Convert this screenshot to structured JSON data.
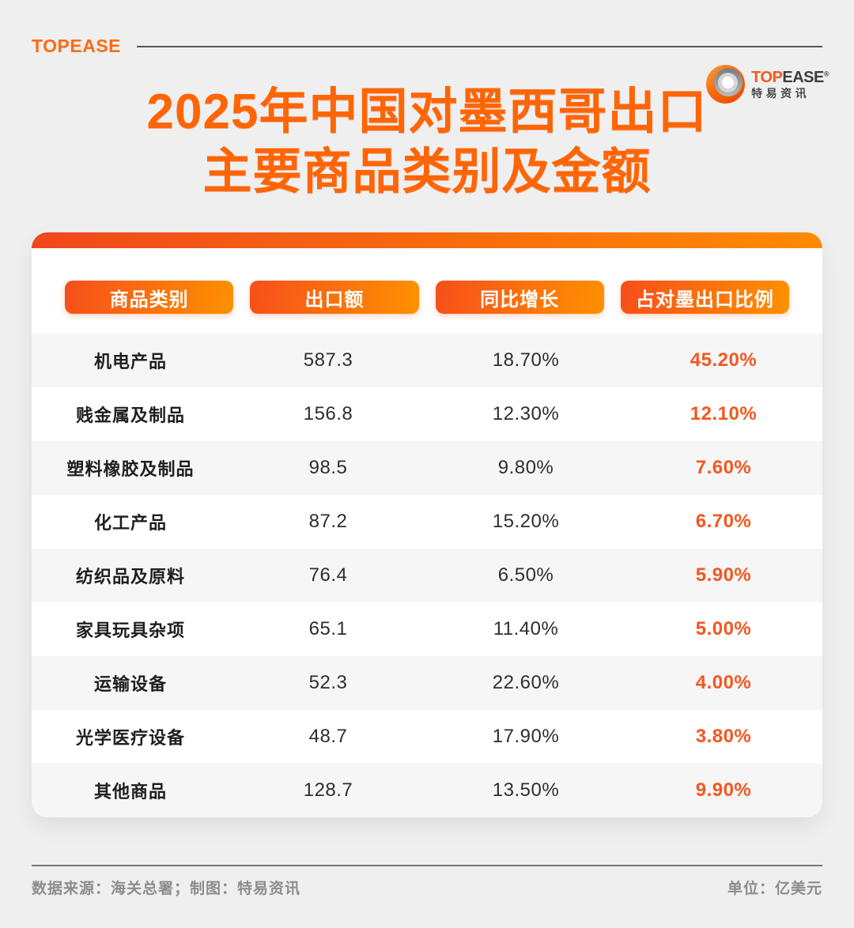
{
  "page": {
    "background": "#efeff0",
    "accent_orange": "#ff6505",
    "highlight_orange": "#f4571f"
  },
  "topbar": {
    "brand_text": "TOPEASE"
  },
  "corner_logo": {
    "wordmark_top": "TOP",
    "wordmark_ease": "EASE",
    "registered_mark": "®",
    "cn_name": "特易资讯"
  },
  "title": {
    "line1": "2025年中国对墨西哥出口",
    "line2": "主要商品类别及金额"
  },
  "chart_data": {
    "type": "table",
    "title": "2025年中国对墨西哥出口主要商品类别及金额",
    "unit": "亿美元",
    "columns": [
      "商品类别",
      "出口额",
      "同比增长",
      "占对墨出口比例"
    ],
    "rows": [
      [
        "机电产品",
        "587.3",
        "18.70%",
        "45.20%"
      ],
      [
        "贱金属及制品",
        "156.8",
        "12.30%",
        "12.10%"
      ],
      [
        "塑料橡胶及制品",
        "98.5",
        "9.80%",
        "7.60%"
      ],
      [
        "化工产品",
        "87.2",
        "15.20%",
        "6.70%"
      ],
      [
        "纺织品及原料",
        "76.4",
        "6.50%",
        "5.90%"
      ],
      [
        "家具玩具杂项",
        "65.1",
        "11.40%",
        "5.00%"
      ],
      [
        "运输设备",
        "52.3",
        "22.60%",
        "4.00%"
      ],
      [
        "光学医疗设备",
        "48.7",
        "17.90%",
        "3.80%"
      ],
      [
        "其他商品",
        "128.7",
        "13.50%",
        "9.90%"
      ]
    ],
    "export_values_numeric": [
      587.3,
      156.8,
      98.5,
      87.2,
      76.4,
      65.1,
      52.3,
      48.7,
      128.7
    ],
    "yoy_growth_numeric_pct": [
      18.7,
      12.3,
      9.8,
      15.2,
      6.5,
      11.4,
      22.6,
      17.9,
      13.5
    ],
    "share_numeric_pct": [
      45.2,
      12.1,
      7.6,
      6.7,
      5.9,
      5.0,
      4.0,
      3.8,
      9.9
    ]
  },
  "footer": {
    "source": "数据来源：海关总署；制图：特易资讯",
    "unit_label": "单位：亿美元"
  }
}
